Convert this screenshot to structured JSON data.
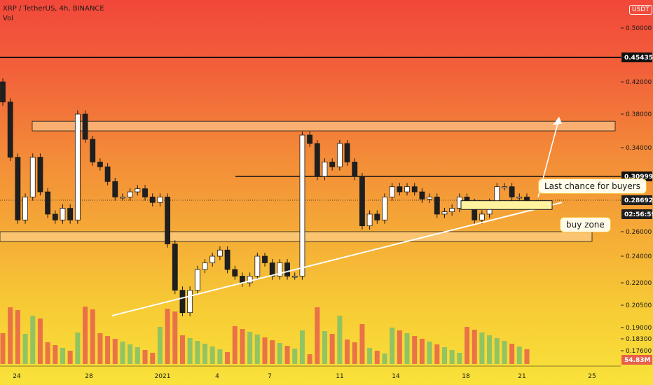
{
  "header": {
    "symbol_line": "XRP / TetherUS, 4h, BINANCE",
    "indicator": "Vol",
    "currency_button": "USDT"
  },
  "colors": {
    "bull": "#ffffff",
    "bear": "#1f1f1f",
    "vol_bull": "#7fbf6a",
    "vol_bear": "#e8604a",
    "trendline": "#ffffff",
    "zone_fill": "#ffd9a0",
    "line_black": "#111111"
  },
  "annotations": {
    "last_chance": "Last chance for buyers",
    "buy_zone": "buy zone"
  },
  "chart_data": {
    "type": "candlestick",
    "x_ticks": [
      "24",
      "28",
      "2021",
      "4",
      "7",
      "11",
      "14",
      "18",
      "21",
      "25"
    ],
    "y_ticks": [
      "0.50000",
      "0.42000",
      "0.38000",
      "0.34000",
      "0.26000",
      "0.24000",
      "0.22000",
      "0.20500",
      "0.19000",
      "0.18300",
      "0.17600"
    ],
    "price_tags": [
      {
        "label": "0.45435",
        "kind": "level"
      },
      {
        "label": "0.30999",
        "kind": "level"
      },
      {
        "label": "0.28692",
        "kind": "current"
      },
      {
        "label": "02:56:59",
        "kind": "countdown"
      },
      {
        "label": "54.83M",
        "kind": "volume"
      }
    ],
    "horizontal_levels": [
      0.45435,
      0.30999,
      0.26
    ],
    "resistance_zone": [
      0.36,
      0.3715
    ],
    "support_zone": [
      0.252,
      0.26
    ],
    "series": [
      {
        "name": "XRP / TetherUS",
        "close": [
          0.395,
          0.33,
          0.27,
          0.29,
          0.33,
          0.295,
          0.275,
          0.27,
          0.28,
          0.27,
          0.38,
          0.35,
          0.325,
          0.32,
          0.305,
          0.29,
          0.29,
          0.295,
          0.298,
          0.29,
          0.285,
          0.29,
          0.25,
          0.215,
          0.2,
          0.215,
          0.23,
          0.235,
          0.24,
          0.245,
          0.23,
          0.225,
          0.22,
          0.225,
          0.24,
          0.235,
          0.225,
          0.235,
          0.225,
          0.225,
          0.355,
          0.345,
          0.31,
          0.325,
          0.32,
          0.345,
          0.325,
          0.31,
          0.265,
          0.275,
          0.27,
          0.29,
          0.3,
          0.295,
          0.3,
          0.295,
          0.288,
          0.29,
          0.275,
          0.277,
          0.28,
          0.29,
          0.285,
          0.27,
          0.275,
          0.285,
          0.3,
          0.3,
          0.29,
          0.29,
          0.287
        ]
      }
    ]
  }
}
